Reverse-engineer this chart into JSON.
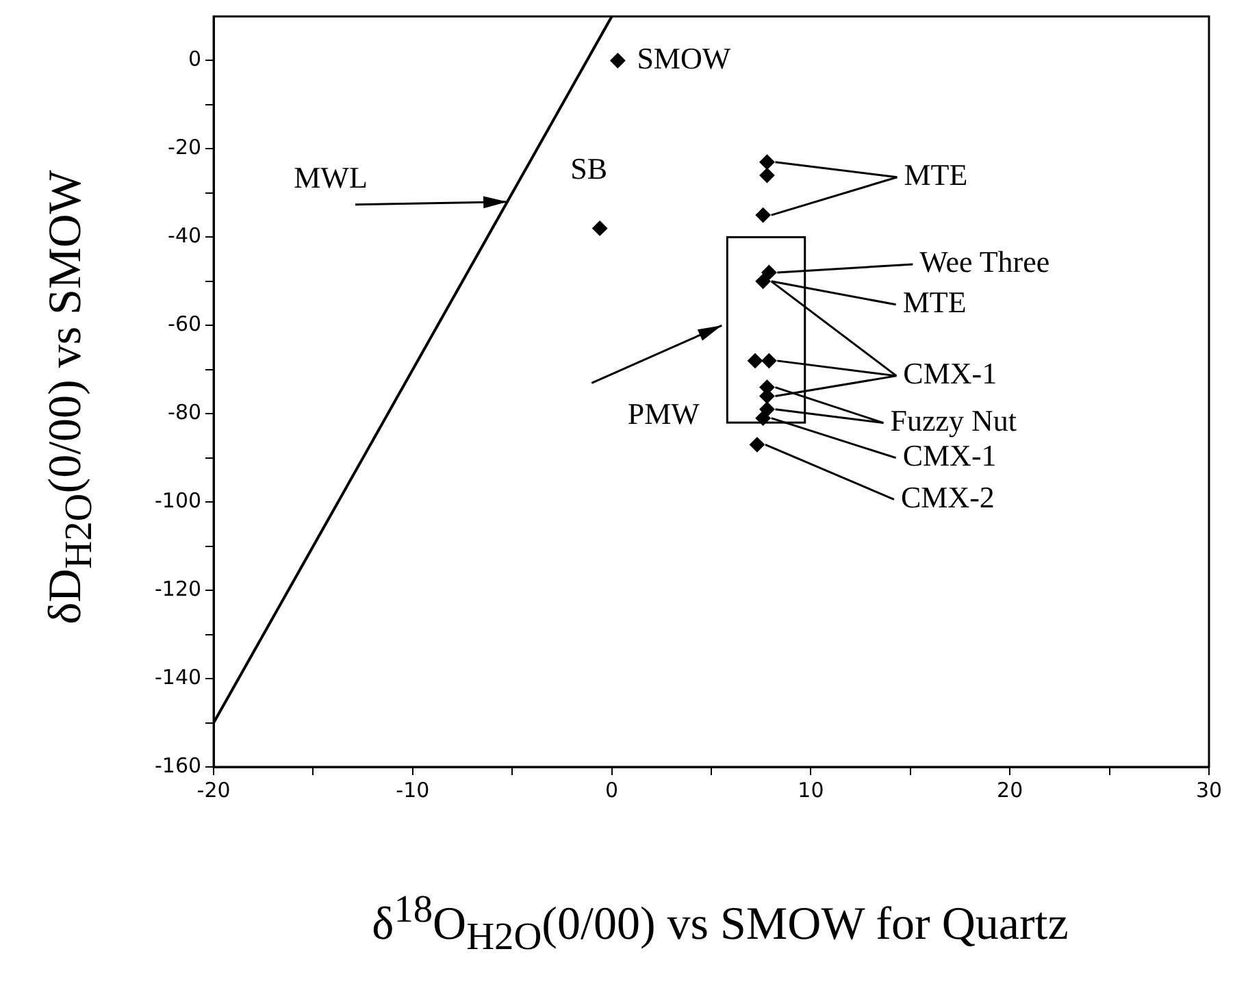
{
  "chart_data": {
    "type": "scatter",
    "xlabel": "δ$^{18}$O$_{H2O}$(0/00) vs SMOW for Quartz",
    "ylabel": "δD$_{H2O}$(0/00) vs SMOW",
    "xlim": [
      -20,
      30
    ],
    "ylim": [
      -160,
      10
    ],
    "xticks": [
      -20,
      {
        "value": -15,
        "label": null
      },
      -10,
      {
        "value": -5,
        "label": null
      },
      0,
      {
        "value": 5,
        "label": null
      },
      10,
      {
        "value": 15,
        "label": null
      },
      20,
      {
        "value": 25,
        "label": null
      },
      30
    ],
    "yticks": [
      -160,
      {
        "value": -150,
        "label": null
      },
      -140,
      {
        "value": -130,
        "label": null
      },
      -120,
      {
        "value": -110,
        "label": null
      },
      -100,
      {
        "value": -90,
        "label": null
      },
      -80,
      {
        "value": -70,
        "label": null
      },
      -60,
      {
        "value": -50,
        "label": null
      },
      -40,
      {
        "value": -30,
        "label": null
      },
      -20,
      {
        "value": -10,
        "label": null
      },
      0
    ],
    "grid": false,
    "marker": "diamond",
    "series": [
      {
        "type": "line",
        "color": "#000000",
        "x": [
          -20,
          0
        ],
        "values": [
          -150,
          10
        ],
        "marker": "none"
      },
      {
        "color": "#000000",
        "x": [
          0.3,
          -0.6,
          7.8,
          7.8,
          7.6,
          7.9,
          7.6,
          7.2,
          7.9,
          7.8,
          7.8,
          7.8,
          7.6,
          7.3
        ],
        "values": [
          0,
          -38,
          -23,
          -26,
          -35,
          -48,
          -50,
          -68,
          -68,
          -74,
          -76,
          -79,
          -81,
          -87
        ]
      }
    ],
    "annotations": [
      {
        "text": "SMOW",
        "x": 0.3,
        "y": 0
      },
      {
        "text": "SB",
        "x": -0.6,
        "y": -38
      },
      {
        "text": "MWL",
        "x": -5.25,
        "y": -32
      },
      "PMW",
      {
        "text": "MTE",
        "x": 7.8,
        "y": -23
      },
      {
        "text": "Wee Three",
        "x": 7.9,
        "y": -48
      },
      {
        "text": "MTE",
        "x": 7.6,
        "y": -50
      },
      {
        "text": "CMX-1",
        "x": 7.9,
        "y": -68
      },
      {
        "text": "Fuzzy Nut",
        "x": 7.8,
        "y": -74
      },
      {
        "text": "CMX-1",
        "x": 7.6,
        "y": -81
      },
      {
        "text": "CMX-2",
        "x": 7.3,
        "y": -87
      }
    ]
  }
}
